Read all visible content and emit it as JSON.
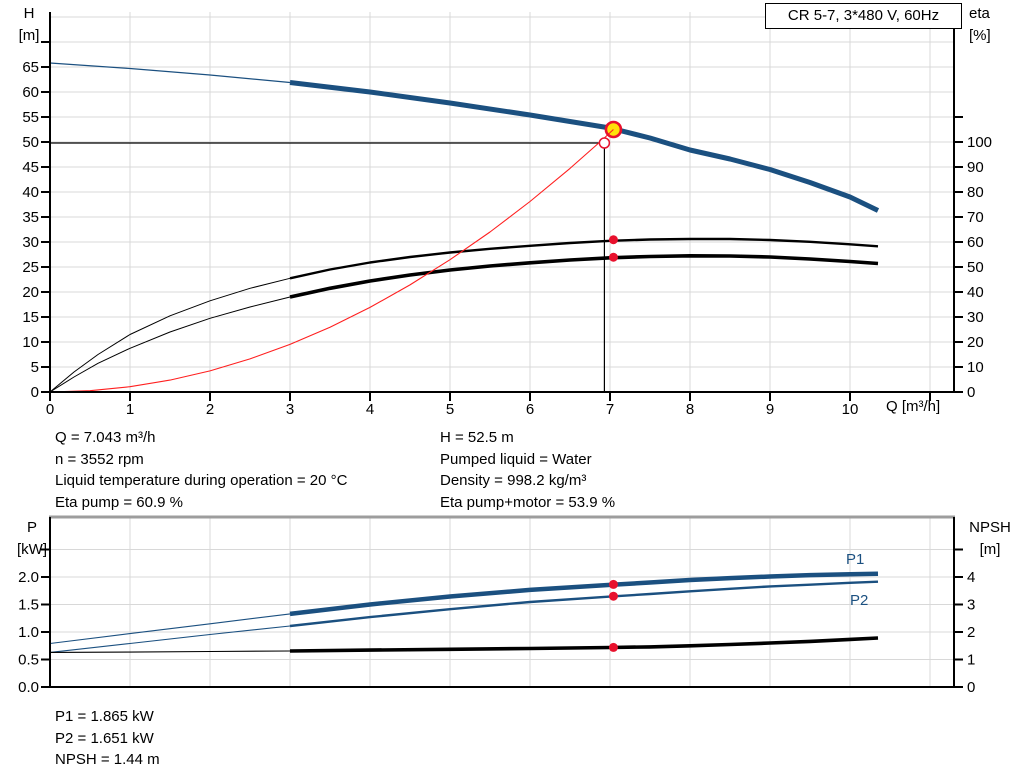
{
  "colors": {
    "curve_blue": "#1b5080",
    "curve_black": "#000000",
    "system_red": "#ff1f1f",
    "marker_red": "#e8112d",
    "duty_yellow": "#ffe10a",
    "grid": "#d8d8d8",
    "frame_gray": "#9d9d9d"
  },
  "info_top": {
    "left": [
      "Q = 7.043 m³/h",
      "n = 3552 rpm",
      "Liquid temperature during operation = 20 °C",
      "Eta pump = 60.9 %"
    ],
    "right": [
      "H = 52.5 m",
      "Pumped liquid = Water",
      "Density = 998.2 kg/m³",
      "Eta pump+motor = 53.9 %"
    ]
  },
  "info_bottom": [
    "P1 = 1.865 kW",
    "P2 = 1.651 kW",
    "NPSH = 1.44 m"
  ],
  "chart_data": [
    {
      "type": "line",
      "title": "CR 5-7, 3*480 V, 60Hz",
      "xlabel": "Q [m³/h]",
      "x_axis": {
        "min": 0,
        "max": 11.3,
        "tick_step": 1,
        "ticks_until": 11,
        "labels_until": 10
      },
      "y_left": {
        "name": "H",
        "unit": "[m]",
        "min": 0,
        "tick_step": 5,
        "ticks_until": 70,
        "labels_until": 65,
        "grid_until": 75
      },
      "y_right": {
        "name": "eta",
        "unit": "[%]",
        "min": 0,
        "tick_step": 10,
        "ticks_until": 110,
        "labels_until": 100
      },
      "series": [
        {
          "name": "head-capacity",
          "axis": "left",
          "color": "#1b5080",
          "thin_width": 1.2,
          "thick_width": 5,
          "split_q": 3,
          "points": [
            [
              0,
              65.8
            ],
            [
              1,
              64.7
            ],
            [
              2,
              63.4
            ],
            [
              3,
              61.9
            ],
            [
              4,
              60.0
            ],
            [
              5,
              57.8
            ],
            [
              6,
              55.4
            ],
            [
              6.5,
              54.1
            ],
            [
              7,
              52.8
            ],
            [
              7.5,
              50.8
            ],
            [
              8,
              48.4
            ],
            [
              8.5,
              46.6
            ],
            [
              9,
              44.5
            ],
            [
              9.5,
              41.9
            ],
            [
              10,
              39.0
            ],
            [
              10.35,
              36.3
            ]
          ]
        },
        {
          "name": "eta-pump",
          "axis": "right",
          "color": "#000000",
          "thin_width": 1,
          "thick_width": 2.4,
          "split_q": 3,
          "points": [
            [
              0,
              0
            ],
            [
              0.3,
              8
            ],
            [
              0.6,
              15
            ],
            [
              1,
              23
            ],
            [
              1.5,
              30.5
            ],
            [
              2,
              36.5
            ],
            [
              2.5,
              41.5
            ],
            [
              3,
              45.5
            ],
            [
              3.5,
              49
            ],
            [
              4,
              51.8
            ],
            [
              4.5,
              54
            ],
            [
              5,
              55.8
            ],
            [
              5.5,
              57.3
            ],
            [
              6,
              58.5
            ],
            [
              6.5,
              59.6
            ],
            [
              7,
              60.5
            ],
            [
              7.5,
              61.0
            ],
            [
              8,
              61.2
            ],
            [
              8.5,
              61.2
            ],
            [
              9,
              60.8
            ],
            [
              9.5,
              60.1
            ],
            [
              10,
              59.1
            ],
            [
              10.35,
              58.3
            ]
          ]
        },
        {
          "name": "eta-pump-motor",
          "axis": "right",
          "color": "#000000",
          "thin_width": 1,
          "thick_width": 3.6,
          "split_q": 3,
          "points": [
            [
              0,
              0
            ],
            [
              0.3,
              6
            ],
            [
              0.6,
              11.5
            ],
            [
              1,
              17.5
            ],
            [
              1.5,
              24
            ],
            [
              2,
              29.5
            ],
            [
              2.5,
              34
            ],
            [
              3,
              38
            ],
            [
              3.5,
              41.5
            ],
            [
              4,
              44.4
            ],
            [
              4.5,
              46.8
            ],
            [
              5,
              48.8
            ],
            [
              5.5,
              50.4
            ],
            [
              6,
              51.7
            ],
            [
              6.5,
              52.8
            ],
            [
              7,
              53.7
            ],
            [
              7.5,
              54.2
            ],
            [
              8,
              54.5
            ],
            [
              8.5,
              54.4
            ],
            [
              9,
              54.0
            ],
            [
              9.5,
              53.2
            ],
            [
              10,
              52.2
            ],
            [
              10.35,
              51.4
            ]
          ]
        },
        {
          "name": "system-curve",
          "axis": "left",
          "color": "#ff1f1f",
          "thin_width": 1.1,
          "thick_width": 1.1,
          "split_q": 99,
          "defer": true,
          "points": [
            [
              0,
              0
            ],
            [
              0.5,
              0.26
            ],
            [
              1,
              1.06
            ],
            [
              1.5,
              2.38
            ],
            [
              2,
              4.23
            ],
            [
              2.5,
              6.61
            ],
            [
              3,
              9.52
            ],
            [
              3.5,
              12.96
            ],
            [
              4,
              16.93
            ],
            [
              4.5,
              21.43
            ],
            [
              5,
              26.46
            ],
            [
              5.5,
              32.01
            ],
            [
              6,
              38.1
            ],
            [
              6.5,
              44.71
            ],
            [
              6.9,
              50.38
            ],
            [
              7.043,
              52.5
            ]
          ]
        }
      ],
      "markers": {
        "duty_point": {
          "q": 7.043,
          "h": 52.5
        },
        "requested_point": {
          "q": 6.93,
          "h": 49.8
        },
        "eta_dots": [
          {
            "q": 7.043,
            "v": 60.9
          },
          {
            "q": 7.043,
            "v": 53.9
          }
        ]
      }
    },
    {
      "type": "line",
      "title": "",
      "xlabel": "",
      "x_axis": {
        "min": 0,
        "max": 11.3,
        "tick_step": 1,
        "ticks_until": -1,
        "labels_until": -1
      },
      "y_left": {
        "name": "P",
        "unit": "[kW]",
        "min": 0,
        "tick_step": 0.5,
        "ticks_until": 2.5,
        "labels_until": 2.0,
        "decimals": 1,
        "grid_until": 2.5
      },
      "y_right": {
        "name": "NPSH",
        "unit": "[m]",
        "min": 0,
        "tick_step": 1,
        "ticks_until": 5,
        "labels_until": 4
      },
      "series": [
        {
          "name": "P1",
          "axis": "left",
          "color": "#1b5080",
          "thin_width": 1.1,
          "thick_width": 4.5,
          "split_q": 3,
          "label": {
            "text": "P1",
            "q": 9.95,
            "v": 2.33
          },
          "points": [
            [
              0,
              0.79
            ],
            [
              1,
              0.97
            ],
            [
              2,
              1.15
            ],
            [
              3,
              1.33
            ],
            [
              4,
              1.5
            ],
            [
              5,
              1.645
            ],
            [
              6,
              1.765
            ],
            [
              7,
              1.857
            ],
            [
              7.5,
              1.9
            ],
            [
              8,
              1.945
            ],
            [
              8.5,
              1.98
            ],
            [
              9,
              2.01
            ],
            [
              9.5,
              2.035
            ],
            [
              10,
              2.05
            ],
            [
              10.35,
              2.06
            ]
          ]
        },
        {
          "name": "P2",
          "axis": "left",
          "color": "#1b5080",
          "thin_width": 1.1,
          "thick_width": 2.4,
          "split_q": 3,
          "label": {
            "text": "P2",
            "q": 10.0,
            "v": 1.58
          },
          "points": [
            [
              0,
              0.63
            ],
            [
              1,
              0.79
            ],
            [
              2,
              0.955
            ],
            [
              3,
              1.11
            ],
            [
              4,
              1.27
            ],
            [
              5,
              1.415
            ],
            [
              6,
              1.545
            ],
            [
              7,
              1.643
            ],
            [
              7.5,
              1.69
            ],
            [
              8,
              1.74
            ],
            [
              8.5,
              1.785
            ],
            [
              9,
              1.83
            ],
            [
              9.5,
              1.86
            ],
            [
              10,
              1.895
            ],
            [
              10.35,
              1.915
            ]
          ]
        },
        {
          "name": "NPSH",
          "axis": "right",
          "color": "#000000",
          "thin_width": 1.1,
          "thick_width": 3.6,
          "split_q": 3,
          "points": [
            [
              0,
              1.26
            ],
            [
              1,
              1.27
            ],
            [
              2,
              1.29
            ],
            [
              3,
              1.31
            ],
            [
              4,
              1.34
            ],
            [
              5,
              1.37
            ],
            [
              6,
              1.4
            ],
            [
              7,
              1.435
            ],
            [
              7.5,
              1.46
            ],
            [
              8,
              1.5
            ],
            [
              8.5,
              1.545
            ],
            [
              9,
              1.6
            ],
            [
              9.5,
              1.66
            ],
            [
              10,
              1.73
            ],
            [
              10.35,
              1.78
            ]
          ]
        }
      ],
      "dots": [
        {
          "q": 7.043,
          "axis": "left",
          "v": 1.865
        },
        {
          "q": 7.043,
          "axis": "left",
          "v": 1.651
        },
        {
          "q": 7.043,
          "axis": "right",
          "v": 1.44
        }
      ]
    }
  ]
}
